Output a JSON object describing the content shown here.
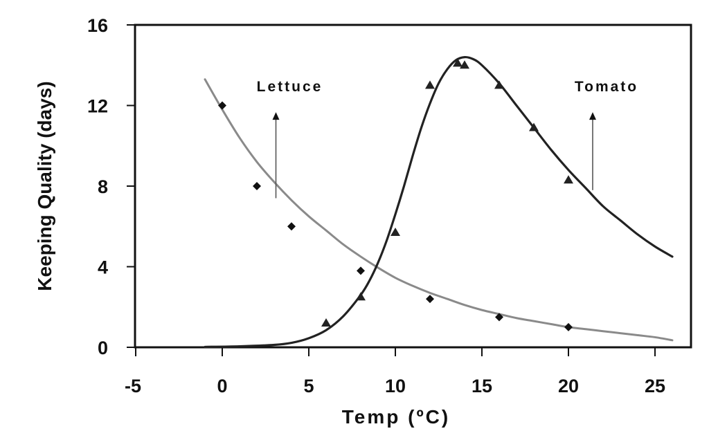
{
  "chart_data": {
    "type": "scatter",
    "title": "",
    "xlabel": "Temp (ºC)",
    "ylabel": "Keeping Quality (days)",
    "xlim": [
      -5,
      27
    ],
    "ylim": [
      0,
      16
    ],
    "x_ticks": [
      -5,
      0,
      5,
      10,
      15,
      20,
      25
    ],
    "y_ticks": [
      0,
      4,
      8,
      12,
      16
    ],
    "grid": false,
    "legend": "none (inline annotations with arrows)",
    "series": [
      {
        "name": "Lettuce",
        "marker": "diamond",
        "marker_color": "#111111",
        "line_color": "#8a8a8a",
        "points": [
          [
            0,
            12.0
          ],
          [
            2,
            8.0
          ],
          [
            4,
            6.0
          ],
          [
            8,
            3.8
          ],
          [
            12,
            2.4
          ],
          [
            16,
            1.5
          ],
          [
            20,
            1.0
          ]
        ],
        "fit_curve": [
          [
            -1,
            13.3
          ],
          [
            0,
            11.8
          ],
          [
            1,
            10.4
          ],
          [
            2,
            9.2
          ],
          [
            3,
            8.2
          ],
          [
            4,
            7.3
          ],
          [
            5,
            6.5
          ],
          [
            6,
            5.8
          ],
          [
            7,
            5.1
          ],
          [
            8,
            4.5
          ],
          [
            9,
            3.95
          ],
          [
            10,
            3.45
          ],
          [
            11,
            3.05
          ],
          [
            12,
            2.7
          ],
          [
            13,
            2.4
          ],
          [
            14,
            2.1
          ],
          [
            15,
            1.85
          ],
          [
            16,
            1.65
          ],
          [
            17,
            1.45
          ],
          [
            18,
            1.3
          ],
          [
            19,
            1.15
          ],
          [
            20,
            1.0
          ],
          [
            21,
            0.9
          ],
          [
            22,
            0.8
          ],
          [
            23,
            0.7
          ],
          [
            24,
            0.6
          ],
          [
            25,
            0.5
          ],
          [
            26,
            0.35
          ]
        ]
      },
      {
        "name": "Tomato",
        "marker": "triangle",
        "marker_color": "#222222",
        "line_color": "#222222",
        "points": [
          [
            6,
            1.2
          ],
          [
            8,
            2.5
          ],
          [
            10,
            5.7
          ],
          [
            12,
            13.0
          ],
          [
            13.6,
            14.1
          ],
          [
            14,
            14.0
          ],
          [
            16,
            13.0
          ],
          [
            18,
            10.9
          ],
          [
            20,
            8.3
          ]
        ],
        "fit_curve": [
          [
            -1,
            0.02
          ],
          [
            1,
            0.05
          ],
          [
            3,
            0.12
          ],
          [
            4,
            0.22
          ],
          [
            5,
            0.45
          ],
          [
            6,
            0.85
          ],
          [
            7,
            1.55
          ],
          [
            8,
            2.6
          ],
          [
            8.5,
            3.3
          ],
          [
            9,
            4.2
          ],
          [
            9.5,
            5.3
          ],
          [
            10,
            6.6
          ],
          [
            10.5,
            8.0
          ],
          [
            11,
            9.5
          ],
          [
            11.5,
            10.9
          ],
          [
            12,
            12.1
          ],
          [
            12.5,
            13.1
          ],
          [
            13,
            13.8
          ],
          [
            13.5,
            14.25
          ],
          [
            14,
            14.4
          ],
          [
            14.5,
            14.3
          ],
          [
            15,
            14.0
          ],
          [
            16,
            13.1
          ],
          [
            17,
            12.0
          ],
          [
            18,
            10.9
          ],
          [
            19,
            9.8
          ],
          [
            20,
            8.8
          ],
          [
            21,
            7.9
          ],
          [
            22,
            7.0
          ],
          [
            23,
            6.3
          ],
          [
            24,
            5.6
          ],
          [
            25,
            5.0
          ],
          [
            26,
            4.5
          ]
        ]
      }
    ],
    "annotations": [
      {
        "text": "Lettuce",
        "label_pos": [
          3.1,
          12.7
        ],
        "arrow_from": [
          3.1,
          7.4
        ],
        "arrow_to": [
          3.1,
          11.6
        ]
      },
      {
        "text": "Tomato",
        "label_pos": [
          21.4,
          12.7
        ],
        "arrow_from": [
          21.4,
          7.8
        ],
        "arrow_to": [
          21.4,
          11.6
        ]
      }
    ]
  }
}
